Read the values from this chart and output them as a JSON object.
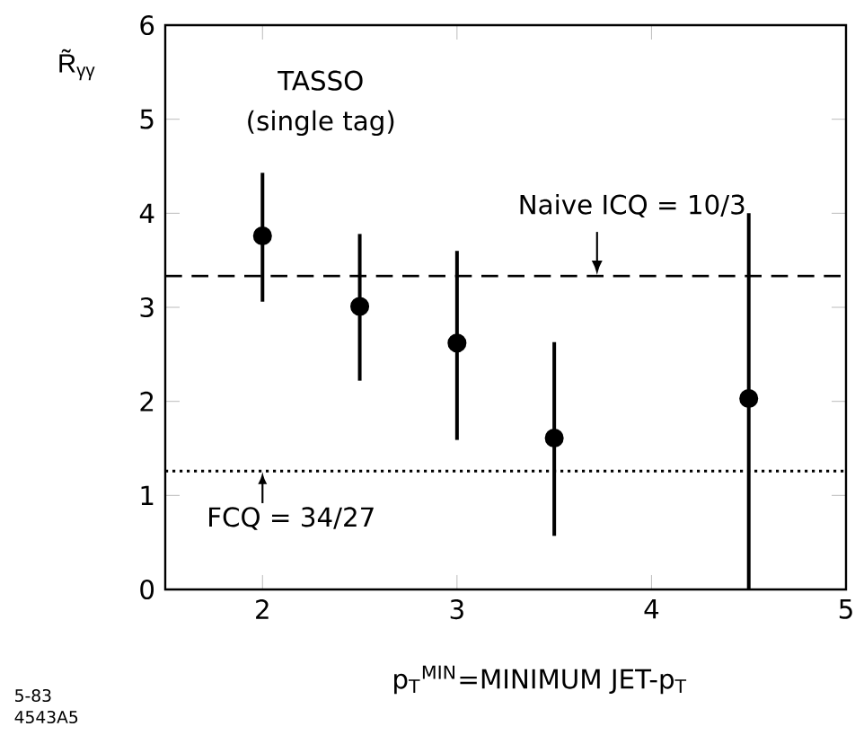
{
  "chart_data": {
    "type": "scatter",
    "xlabel": "p$_{T}$$^{MIN}$=MINIMUM JET-p$_{T}$",
    "ylabel": "R̃$_{γγ}$",
    "x": [
      2,
      2.5,
      3,
      3.5,
      4.5
    ],
    "series": [
      {
        "color": "#000000",
        "values": [
          3.76,
          3.01,
          2.62,
          1.61,
          2.03
        ],
        "errors": [
          [
            3.06,
            4.43
          ],
          [
            2.22,
            3.78
          ],
          [
            1.59,
            3.6
          ],
          [
            0.57,
            2.63
          ],
          [
            0,
            4.0
          ]
        ]
      }
    ],
    "xlim": [
      1.5,
      5
    ],
    "ylim": [
      0,
      6
    ],
    "xticks": [
      2,
      3,
      4,
      5
    ],
    "yticks": [
      0,
      1,
      2,
      3,
      4,
      5,
      6
    ],
    "ref_lines": [
      {
        "axis": "y",
        "value": 3.333,
        "label": "Naive ICQ = 10/3",
        "line_style": "dashed"
      },
      {
        "axis": "y",
        "value": 1.259,
        "line_style": "dotted"
      }
    ],
    "annotations": [
      "TASSO",
      "(single tag)",
      "5-83",
      "4543A5",
      {
        "text": "FCQ = 34/27",
        "x": 2,
        "y": 1.259
      }
    ],
    "marker": "circle",
    "grid": false
  }
}
